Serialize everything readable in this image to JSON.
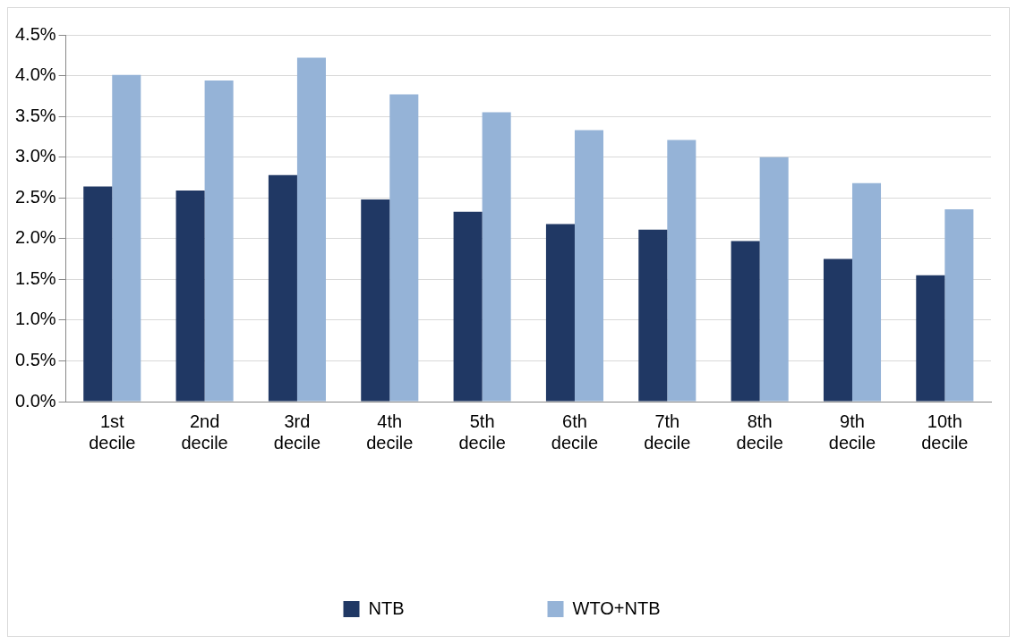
{
  "chart_data": {
    "type": "bar",
    "categories": [
      "1st decile",
      "2nd decile",
      "3rd decile",
      "4th decile",
      "5th decile",
      "6th decile",
      "7th decile",
      "8th decile",
      "9th decile",
      "10th decile"
    ],
    "series": [
      {
        "name": "NTB",
        "color": "#203864",
        "values": [
          2.64,
          2.59,
          2.78,
          2.48,
          2.33,
          2.18,
          2.11,
          1.97,
          1.75,
          1.55
        ]
      },
      {
        "name": "WTO+NTB",
        "color": "#95b3d7",
        "values": [
          4.01,
          3.94,
          4.22,
          3.77,
          3.55,
          3.33,
          3.21,
          3.0,
          2.68,
          2.36
        ]
      }
    ],
    "ylim": [
      0,
      4.5
    ],
    "yticks": [
      {
        "value": 0,
        "label": "0.0%"
      },
      {
        "value": 0.5,
        "label": "0.5%"
      },
      {
        "value": 1,
        "label": "1.0%"
      },
      {
        "value": 1.5,
        "label": "1.5%"
      },
      {
        "value": 2,
        "label": "2.0%"
      },
      {
        "value": 2.5,
        "label": "2.5%"
      },
      {
        "value": 3,
        "label": "3.0%"
      },
      {
        "value": 3.5,
        "label": "3.5%"
      },
      {
        "value": 4,
        "label": "4.0%"
      },
      {
        "value": 4.5,
        "label": "4.5%"
      }
    ],
    "grid": "y",
    "legend": "bottom"
  }
}
